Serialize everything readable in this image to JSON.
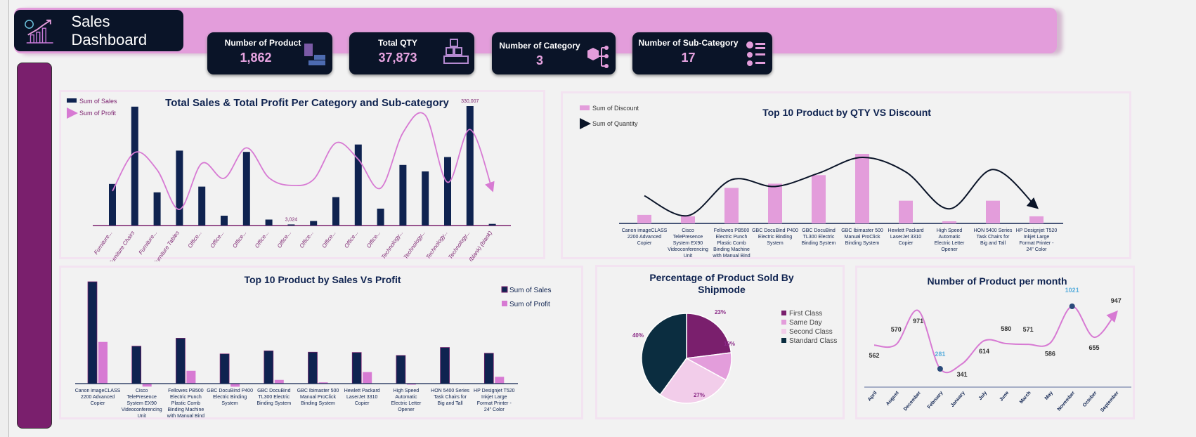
{
  "header": {
    "title": "Sales Dashboard"
  },
  "kpis": [
    {
      "label": "Number of Product",
      "value": "1,862",
      "icon": "products-grid-icon"
    },
    {
      "label": "Total QTY",
      "value": "37,873",
      "icon": "boxes-stack-icon"
    },
    {
      "label": "Number of Category",
      "value": "3",
      "icon": "category-tree-icon"
    },
    {
      "label": "Number of Sub-Category",
      "value": "17",
      "icon": "list-icon"
    }
  ],
  "colors": {
    "navy": "#0f2350",
    "pink": "#e39ddb",
    "purple": "#7a1f6d",
    "profit_line": "#d77ad3",
    "card": "#0a1428"
  },
  "chart_data": [
    {
      "type": "bar",
      "title": "Total Sales & Total Profit Per Category and Sub-category",
      "categories": [
        "Furniture...",
        "Furniture Chairs",
        "Furniture...",
        "Furniture Tables",
        "Office...",
        "Office...",
        "Office...",
        "Office...",
        "Office...",
        "Office...",
        "Office...",
        "Office...",
        "Office...",
        "Technology...",
        "Technology...",
        "Technology...",
        "Technology...",
        "(blank) (blank)"
      ],
      "series": [
        {
          "name": "Sum of Sales",
          "type": "bar",
          "values": [
            114880,
            328449,
            91705,
            206966,
            107532,
            27119,
            203413,
            16476,
            3024,
            12486,
            78479,
            223844,
            46674,
            167380,
            149528,
            189239,
            330007,
            4500
          ]
        },
        {
          "name": "Sum of Profit",
          "type": "line",
          "values": [
            -3473,
            26590,
            13059,
            -17725,
            18138,
            6528,
            30222,
            6964,
            950,
            5546,
            34054,
            21279,
            -1189,
            41937,
            55618,
            3385,
            44516,
            -2500
          ]
        }
      ],
      "data_labels": {
        "8": "3,024",
        "16": "330,007"
      },
      "legend": "top-left",
      "grid": false
    },
    {
      "type": "bar",
      "title": "Top 10 Product by QTY VS Discount",
      "categories": [
        "Canon imageCLASS 2200 Advanced Copier",
        "Cisco TelePresence System EX90 Videoconferencing Unit",
        "Fellowes PB500 Electric Punch Plastic Comb Binding Machine with Manual Bind",
        "GBC DocuBind P400 Electric Binding System",
        "GBC DocuBind TL300 Electric Binding System",
        "GBC Ibimaster 500 Manual ProClick Binding System",
        "Hewlett Packard LaserJet 3310 Copier",
        "High Speed Automatic Electric Letter Opener",
        "HON 5400 Series Task Chairs for Big and Tall",
        "HP Designjet T520 Inkjet Large Format Printer - 24\" Color"
      ],
      "series": [
        {
          "name": "Sum of Discount",
          "type": "bar",
          "values": [
            0.6,
            0.5,
            2.5,
            2.8,
            3.4,
            4.9,
            1.6,
            0.15,
            1.6,
            0.5
          ]
        },
        {
          "name": "Sum of Quantity",
          "type": "line",
          "values": [
            114,
            32,
            180,
            152,
            207,
            272,
            212,
            60,
            222,
            67
          ]
        }
      ],
      "legend": "top-left",
      "grid": false
    },
    {
      "type": "bar",
      "title": "Top 10  Product by Sales Vs Profit",
      "categories": [
        "Canon imageCLASS 2200 Advanced Copier",
        "Cisco TelePresence System EX90 Videoconferencing Unit",
        "Fellowes PB500 Electric Punch Plastic Comb Binding Machine with Manual Bind",
        "GBC DocuBind P400 Electric Binding System",
        "GBC DocuBind TL300 Electric Binding System",
        "GBC Ibimaster 500 Manual ProClick Binding System",
        "Hewlett Packard LaserJet 3310 Copier",
        "High Speed Automatic Electric Letter Opener",
        "HON 5400 Series Task Chairs for Big and Tall",
        "HP Designjet T520 Inkjet Large Format Printer - 24\" Color"
      ],
      "series": [
        {
          "name": "Sum of Sales",
          "values": [
            61600,
            22638,
            27453,
            17965,
            19823,
            19024,
            18840,
            17030,
            21871,
            18375
          ]
        },
        {
          "name": "Sum of Profit",
          "values": [
            25200,
            -1811,
            7753,
            -1878,
            2234,
            760,
            6984,
            -262,
            0,
            4095
          ]
        }
      ],
      "legend": "right",
      "grid": false
    },
    {
      "type": "pie",
      "title": "Percentage of Product Sold By Shipmode",
      "labels": [
        "First Class",
        "Same Day",
        "Second Class",
        "Standard Class"
      ],
      "values": [
        23,
        10,
        27,
        40
      ],
      "data_labels": [
        "23%",
        "10%",
        "27%",
        "40%"
      ],
      "colors": [
        "#7a1f6d",
        "#e39ddb",
        "#f2cdea",
        "#0b2d40"
      ],
      "legend": "right"
    },
    {
      "type": "line",
      "title": "Number of Product per month",
      "categories": [
        "April",
        "August",
        "December",
        "February",
        "January",
        "July",
        "June",
        "March",
        "May",
        "November",
        "October",
        "September"
      ],
      "values": [
        562,
        570,
        971,
        281,
        341,
        614,
        580,
        571,
        586,
        1021,
        655,
        947
      ],
      "highlight": {
        "min": "281",
        "max": "1021"
      },
      "grid": false
    }
  ]
}
